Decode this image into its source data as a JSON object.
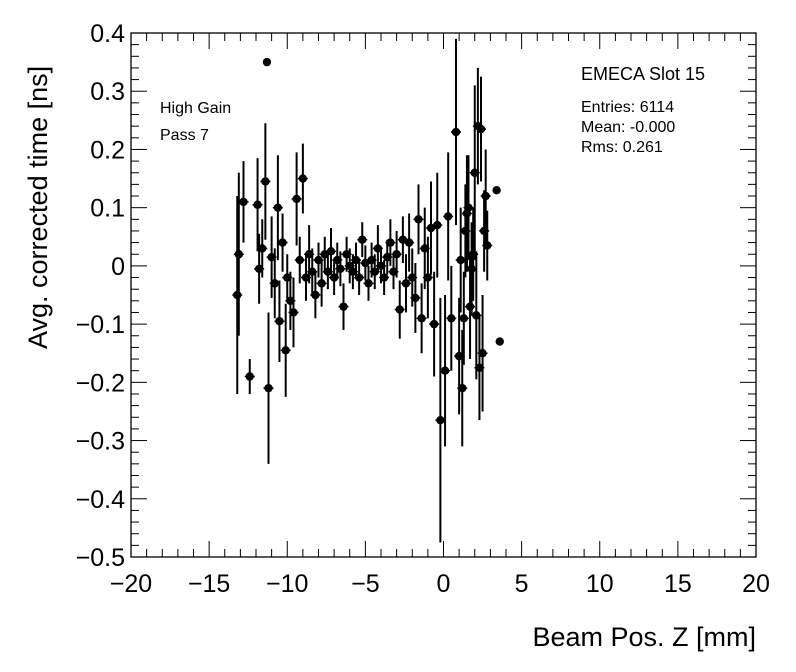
{
  "chart_data": {
    "type": "scatter",
    "title": "",
    "xlabel": "Beam Pos. Z [mm]",
    "ylabel": "Avg. corrected time [ns]",
    "xlim": [
      -20,
      20
    ],
    "ylim": [
      -0.5,
      0.4
    ],
    "x_ticks": [
      -20,
      -15,
      -10,
      -5,
      0,
      5,
      10,
      15,
      20
    ],
    "x_tick_labels": [
      "−20",
      "−15",
      "−10",
      "−5",
      "0",
      "5",
      "10",
      "15",
      "20"
    ],
    "y_ticks": [
      -0.5,
      -0.4,
      -0.3,
      -0.2,
      -0.1,
      0,
      0.1,
      0.2,
      0.3,
      0.4
    ],
    "y_tick_labels": [
      "−0.5",
      "−0.4",
      "−0.3",
      "−0.2",
      "−0.1",
      "0",
      "0.1",
      "0.2",
      "0.3",
      "0.4"
    ],
    "grid": false,
    "annotations": [
      "High Gain",
      "Pass 7"
    ],
    "stats_box": {
      "title": "EMECA Slot 15",
      "lines": [
        "Entries: 6114",
        "Mean: -0.000",
        "Rms: 0.261"
      ]
    },
    "series": [
      {
        "points": [
          {
            "x": -13.2,
            "y": -0.05,
            "err": 0.17
          },
          {
            "x": -13.1,
            "y": 0.02,
            "err": 0.14
          },
          {
            "x": -12.8,
            "y": 0.11,
            "err": 0.07
          },
          {
            "x": -12.4,
            "y": -0.19,
            "err": 0.03
          },
          {
            "x": -11.9,
            "y": 0.105,
            "err": 0.08
          },
          {
            "x": -11.8,
            "y": -0.005,
            "err": 0.06
          },
          {
            "x": -11.6,
            "y": 0.03,
            "err": 0.05
          },
          {
            "x": -11.4,
            "y": 0.145,
            "err": 0.1
          },
          {
            "x": -11.3,
            "y": 0.35,
            "err": 0.0
          },
          {
            "x": -11.2,
            "y": -0.21,
            "err": 0.13
          },
          {
            "x": -11.0,
            "y": 0.015,
            "err": 0.07
          },
          {
            "x": -10.8,
            "y": -0.03,
            "err": 0.06
          },
          {
            "x": -10.6,
            "y": 0.1,
            "err": 0.09
          },
          {
            "x": -10.5,
            "y": -0.095,
            "err": 0.07
          },
          {
            "x": -10.3,
            "y": 0.04,
            "err": 0.05
          },
          {
            "x": -10.1,
            "y": -0.145,
            "err": 0.08
          },
          {
            "x": -10.0,
            "y": -0.02,
            "err": 0.04
          },
          {
            "x": -9.8,
            "y": -0.06,
            "err": 0.05
          },
          {
            "x": -9.6,
            "y": -0.08,
            "err": 0.06
          },
          {
            "x": -9.4,
            "y": 0.115,
            "err": 0.08
          },
          {
            "x": -9.2,
            "y": 0.01,
            "err": 0.04
          },
          {
            "x": -9.0,
            "y": 0.15,
            "err": 0.06
          },
          {
            "x": -8.8,
            "y": -0.02,
            "err": 0.04
          },
          {
            "x": -8.6,
            "y": 0.02,
            "err": 0.05
          },
          {
            "x": -8.4,
            "y": -0.01,
            "err": 0.04
          },
          {
            "x": -8.2,
            "y": -0.05,
            "err": 0.04
          },
          {
            "x": -8.0,
            "y": 0.01,
            "err": 0.03
          },
          {
            "x": -7.8,
            "y": -0.03,
            "err": 0.04
          },
          {
            "x": -7.6,
            "y": 0.02,
            "err": 0.03
          },
          {
            "x": -7.4,
            "y": -0.01,
            "err": 0.03
          },
          {
            "x": -7.2,
            "y": 0.025,
            "err": 0.04
          },
          {
            "x": -7.0,
            "y": -0.02,
            "err": 0.03
          },
          {
            "x": -6.8,
            "y": 0.01,
            "err": 0.03
          },
          {
            "x": -6.6,
            "y": -0.005,
            "err": 0.03
          },
          {
            "x": -6.4,
            "y": -0.07,
            "err": 0.04
          },
          {
            "x": -6.2,
            "y": 0.02,
            "err": 0.03
          },
          {
            "x": -6.0,
            "y": 0.0,
            "err": 0.03
          },
          {
            "x": -5.8,
            "y": -0.01,
            "err": 0.03
          },
          {
            "x": -5.6,
            "y": 0.01,
            "err": 0.03
          },
          {
            "x": -5.4,
            "y": -0.02,
            "err": 0.03
          },
          {
            "x": -5.2,
            "y": 0.045,
            "err": 0.03
          },
          {
            "x": -5.0,
            "y": 0.005,
            "err": 0.03
          },
          {
            "x": -4.8,
            "y": -0.03,
            "err": 0.03
          },
          {
            "x": -4.6,
            "y": 0.01,
            "err": 0.03
          },
          {
            "x": -4.4,
            "y": -0.01,
            "err": 0.03
          },
          {
            "x": -4.2,
            "y": 0.03,
            "err": 0.04
          },
          {
            "x": -4.0,
            "y": 0.0,
            "err": 0.03
          },
          {
            "x": -3.8,
            "y": -0.02,
            "err": 0.03
          },
          {
            "x": -3.6,
            "y": 0.015,
            "err": 0.03
          },
          {
            "x": -3.4,
            "y": 0.04,
            "err": 0.04
          },
          {
            "x": -3.2,
            "y": -0.01,
            "err": 0.03
          },
          {
            "x": -3.0,
            "y": 0.02,
            "err": 0.04
          },
          {
            "x": -2.8,
            "y": -0.075,
            "err": 0.05
          },
          {
            "x": -2.6,
            "y": 0.045,
            "err": 0.04
          },
          {
            "x": -2.4,
            "y": -0.03,
            "err": 0.05
          },
          {
            "x": -2.2,
            "y": 0.04,
            "err": 0.05
          },
          {
            "x": -2.0,
            "y": -0.02,
            "err": 0.05
          },
          {
            "x": -1.8,
            "y": -0.055,
            "err": 0.06
          },
          {
            "x": -1.6,
            "y": 0.08,
            "err": 0.06
          },
          {
            "x": -1.4,
            "y": -0.09,
            "err": 0.06
          },
          {
            "x": -1.2,
            "y": 0.03,
            "err": 0.07
          },
          {
            "x": -1.0,
            "y": -0.02,
            "err": 0.07
          },
          {
            "x": -0.8,
            "y": 0.065,
            "err": 0.08
          },
          {
            "x": -0.6,
            "y": -0.1,
            "err": 0.09
          },
          {
            "x": -0.4,
            "y": 0.07,
            "err": 0.09
          },
          {
            "x": -0.2,
            "y": -0.265,
            "err": 0.21
          },
          {
            "x": 0.1,
            "y": -0.18,
            "err": 0.13
          },
          {
            "x": 0.3,
            "y": 0.085,
            "err": 0.11
          },
          {
            "x": 0.5,
            "y": -0.09,
            "err": 0.09
          },
          {
            "x": 0.8,
            "y": 0.23,
            "err": 0.16
          },
          {
            "x": 1.0,
            "y": -0.155,
            "err": 0.1
          },
          {
            "x": 1.1,
            "y": 0.01,
            "err": 0.09
          },
          {
            "x": 1.2,
            "y": -0.21,
            "err": 0.1
          },
          {
            "x": 1.3,
            "y": -0.09,
            "err": 0.08
          },
          {
            "x": 1.4,
            "y": 0.06,
            "err": 0.08
          },
          {
            "x": 1.5,
            "y": 0.09,
            "err": 0.1
          },
          {
            "x": 1.6,
            "y": 0.1,
            "err": 0.09
          },
          {
            "x": 1.7,
            "y": -0.07,
            "err": 0.09
          },
          {
            "x": 1.8,
            "y": -0.005,
            "err": 0.08
          },
          {
            "x": 1.9,
            "y": 0.02,
            "err": 0.08
          },
          {
            "x": 2.0,
            "y": 0.16,
            "err": 0.15
          },
          {
            "x": 2.1,
            "y": -0.085,
            "err": 0.11
          },
          {
            "x": 2.2,
            "y": 0.24,
            "err": 0.1
          },
          {
            "x": 2.3,
            "y": -0.175,
            "err": 0.09
          },
          {
            "x": 2.4,
            "y": 0.235,
            "err": 0.09
          },
          {
            "x": 2.5,
            "y": -0.15,
            "err": 0.1
          },
          {
            "x": 2.6,
            "y": 0.06,
            "err": 0.07
          },
          {
            "x": 2.7,
            "y": 0.12,
            "err": 0.08
          },
          {
            "x": 2.8,
            "y": 0.035,
            "err": 0.06
          },
          {
            "x": 3.4,
            "y": 0.13,
            "err": 0.0
          },
          {
            "x": 3.6,
            "y": -0.13,
            "err": 0.0
          }
        ]
      }
    ]
  }
}
